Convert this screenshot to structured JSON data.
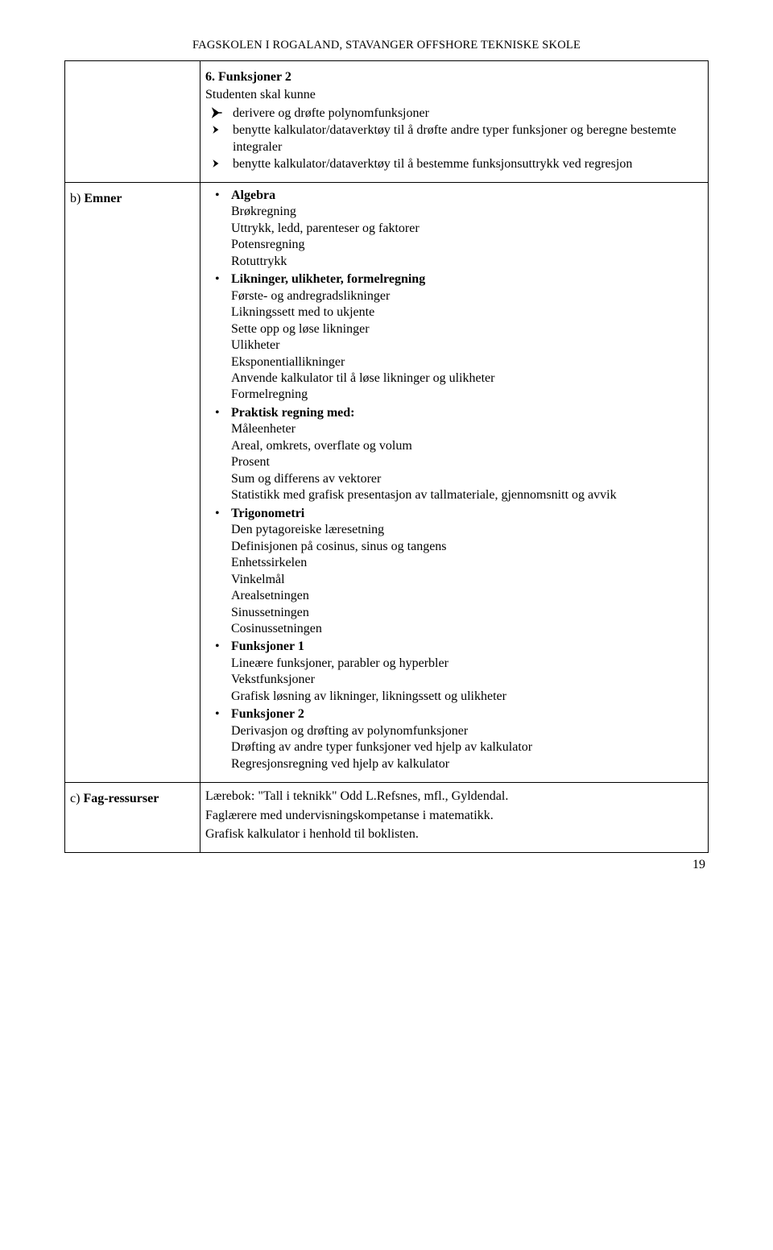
{
  "header": "FAGSKOLEN I ROGALAND, STAVANGER OFFSHORE TEKNISKE SKOLE",
  "section6": {
    "number_title": "6. Funksjoner 2",
    "subtitle": "Studenten skal kunne",
    "arrows": [
      "derivere og drøfte polynomfunksjoner",
      "benytte kalkulator/dataverktøy til å drøfte andre typer funksjoner og beregne bestemte integraler",
      "benytte kalkulator/dataverktøy til å bestemme funksjonsuttrykk ved regresjon"
    ]
  },
  "row_b": {
    "label_prefix": "b) ",
    "label_bold": "Emner",
    "groups": [
      {
        "title": "Algebra",
        "items": [
          "Brøkregning",
          "Uttrykk, ledd, parenteser og faktorer",
          "Potensregning",
          "Rotuttrykk"
        ]
      },
      {
        "title": "Likninger, ulikheter, formelregning",
        "items": [
          "Første- og andregradslikninger",
          "Likningssett med to ukjente",
          "Sette opp og løse likninger",
          "Ulikheter",
          "Eksponentiallikninger",
          "Anvende kalkulator til å løse likninger og ulikheter",
          "Formelregning"
        ]
      },
      {
        "title": "Praktisk regning med:",
        "items": [
          "Måleenheter",
          "Areal, omkrets, overflate og volum",
          "Prosent",
          "Sum og differens av vektorer",
          "Statistikk med grafisk presentasjon av tallmateriale, gjennomsnitt og avvik"
        ]
      },
      {
        "title": "Trigonometri",
        "items": [
          "Den pytagoreiske læresetning",
          "Definisjonen på cosinus, sinus og tangens",
          "Enhetssirkelen",
          "Vinkelmål",
          "Arealsetningen",
          "Sinussetningen",
          "Cosinussetningen"
        ]
      },
      {
        "title": "Funksjoner 1",
        "items": [
          "Lineære funksjoner, parabler og hyperbler",
          "Vekstfunksjoner",
          "Grafisk løsning av likninger, likningssett og ulikheter"
        ]
      },
      {
        "title": "Funksjoner 2",
        "items": [
          "Derivasjon og drøfting av polynomfunksjoner",
          "Drøfting av andre typer funksjoner ved hjelp av kalkulator",
          "Regresjonsregning ved hjelp av kalkulator"
        ]
      }
    ]
  },
  "row_c": {
    "label_prefix": "c) ",
    "label_bold": "Fag-ressurser",
    "lines": [
      "Lærebok: \"Tall i teknikk\" Odd L.Refsnes, mfl., Gyldendal.",
      "Faglærere med undervisningskompetanse i matematikk.",
      "Grafisk kalkulator i henhold til boklisten."
    ]
  },
  "page_number": "19"
}
